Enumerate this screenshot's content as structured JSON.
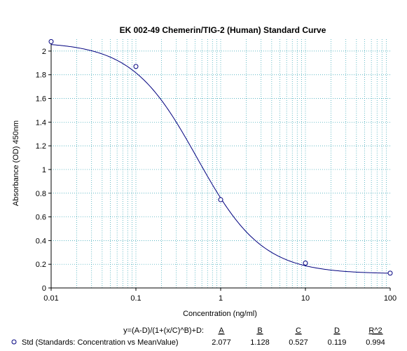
{
  "chart_data": {
    "type": "scatter",
    "title": "EK 002-49 Chemerin/TIG-2 (Human) Standard Curve",
    "xlabel": "Concentration (ng/ml)",
    "ylabel": "Absorbance (OD) 450nm",
    "xscale": "log",
    "xlim": [
      0.01,
      100
    ],
    "ylim": [
      0,
      2.1
    ],
    "grid": true,
    "x_tick_labels": [
      "0.01",
      "0.1",
      "1",
      "10",
      "100"
    ],
    "y_tick_labels": [
      "0",
      "0.2",
      "0.4",
      "0.6",
      "0.8",
      "1",
      "1.2",
      "1.4",
      "1.6",
      "1.8",
      "2"
    ],
    "series": [
      {
        "name": "Std (Standards: Concentration vs MeanValue)",
        "x": [
          0.01,
          0.1,
          1,
          10,
          100
        ],
        "y": [
          2.08,
          1.87,
          0.745,
          0.21,
          0.125
        ],
        "color": "#00007f"
      }
    ],
    "fit": {
      "equation": "y=(A-D)/(1+(x/C)^B)+D:",
      "headers": [
        "A",
        "B",
        "C",
        "D",
        "R^2"
      ],
      "values": [
        "2.077",
        "1.128",
        "0.527",
        "0.119",
        "0.994"
      ],
      "params": {
        "A": 2.077,
        "B": 1.128,
        "C": 0.527,
        "D": 0.119
      }
    }
  }
}
